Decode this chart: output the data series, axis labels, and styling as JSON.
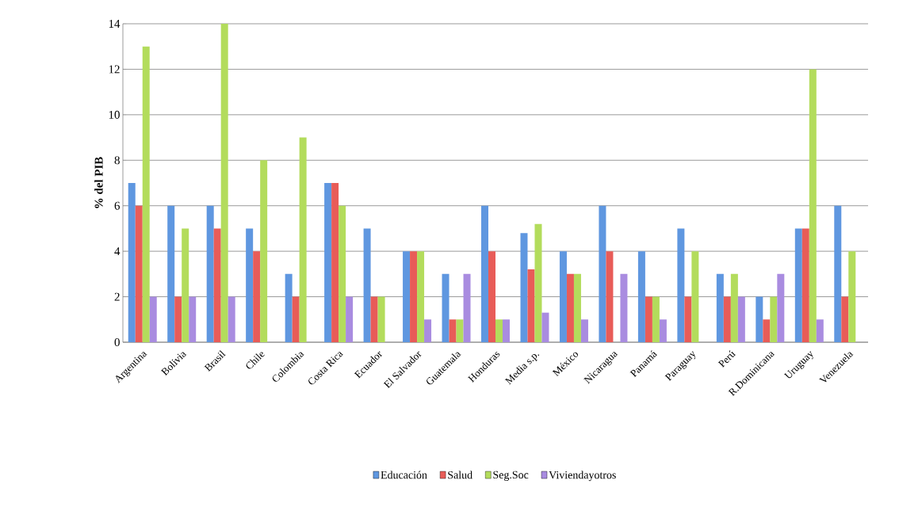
{
  "chart_data": {
    "type": "bar",
    "ylabel": "% del PIB",
    "categories": [
      "Argentina",
      "Bolivia",
      "Brasil",
      "Chile",
      "Colombia",
      "Costa Rica",
      "Ecuador",
      "El Salvador",
      "Guatemala",
      "Honduras",
      "Media s.p.",
      "México",
      "Nicaragua",
      "Panamá",
      "Paraguay",
      "Perú",
      "R.Dominicana",
      "Uruguay",
      "Venezuela"
    ],
    "series": [
      {
        "name": "Educación",
        "color": "#5f97e0",
        "values": [
          7,
          6,
          6,
          5,
          3,
          7,
          5,
          4,
          3,
          6,
          4.8,
          4,
          6,
          4,
          5,
          3,
          2,
          5,
          6
        ]
      },
      {
        "name": "Salud",
        "color": "#e85c58",
        "values": [
          6,
          2,
          5,
          4,
          2,
          7,
          2,
          4,
          1,
          4,
          3.2,
          3,
          4,
          2,
          2,
          2,
          1,
          5,
          2
        ]
      },
      {
        "name": "Seg.Soc",
        "color": "#b3dc5c",
        "values": [
          13,
          5,
          14,
          8,
          9,
          6,
          2,
          4,
          1,
          1,
          5.2,
          3,
          0,
          2,
          4,
          3,
          2,
          12,
          4
        ]
      },
      {
        "name": "Viviendayotros",
        "color": "#a98ce0",
        "values": [
          2,
          2,
          2,
          0,
          0,
          2,
          0,
          1,
          3,
          1,
          1.3,
          1,
          3,
          1,
          0,
          2,
          3,
          1,
          0
        ]
      }
    ],
    "ylim": [
      0,
      14
    ],
    "yticks": [
      0,
      2,
      4,
      6,
      8,
      10,
      12,
      14
    ],
    "grid": "y",
    "legend": "bottom"
  }
}
